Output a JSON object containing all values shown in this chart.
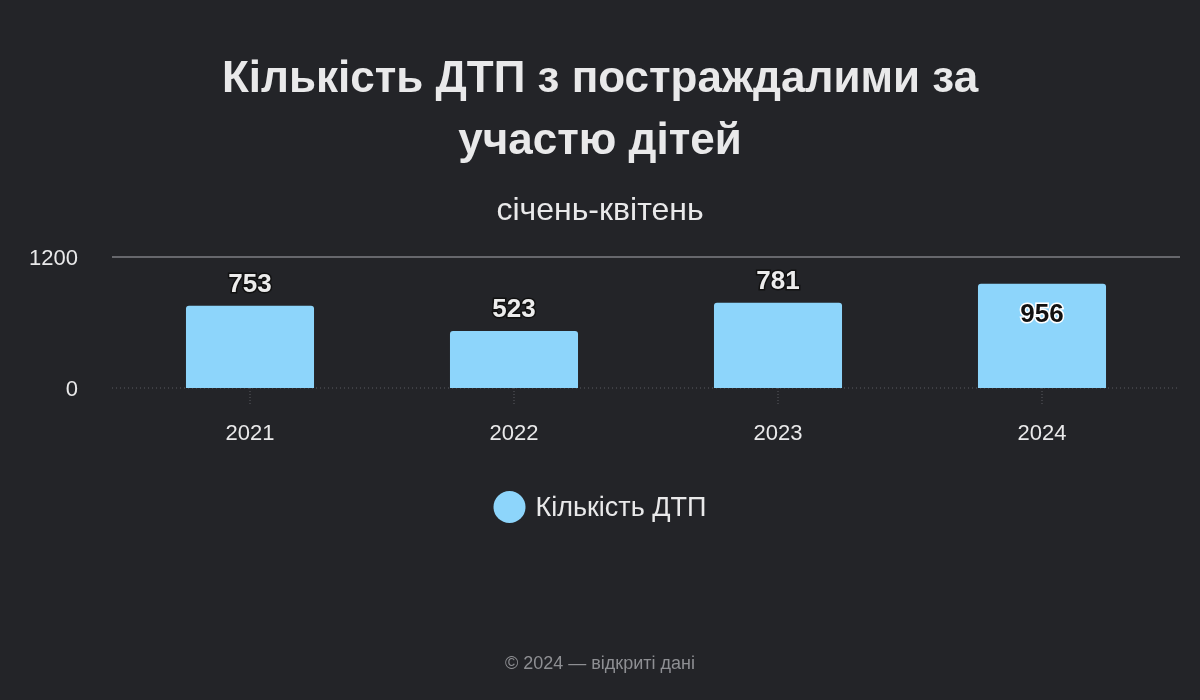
{
  "chart_data": {
    "type": "bar",
    "title": "Кількість ДТП з постраждалими за участю дітей",
    "subtitle": "січень-квітень",
    "categories": [
      "2021",
      "2022",
      "2023",
      "2024"
    ],
    "series": [
      {
        "name": "Кількість ДТП",
        "color": "#8dd5fb",
        "values": [
          753,
          523,
          781,
          956
        ]
      }
    ],
    "ylim": [
      0,
      1200
    ],
    "yticks": [
      0,
      1200
    ],
    "grid": "y",
    "legend": "bottom",
    "data_labels": true,
    "annotations": [
      "© 2024 — відкриті дані"
    ]
  }
}
